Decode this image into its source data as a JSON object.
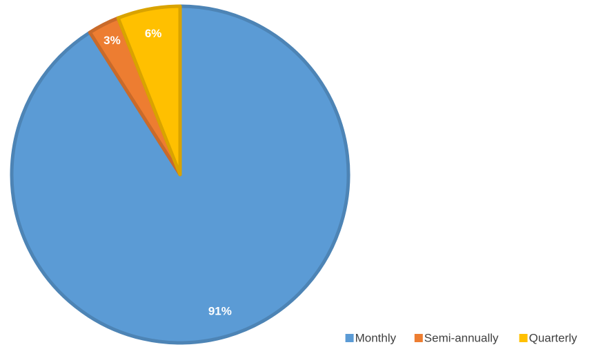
{
  "chart_data": {
    "type": "pie",
    "categories": [
      "Monthly",
      "Semi-annually",
      "Quarterly"
    ],
    "values": [
      91,
      3,
      6
    ],
    "value_labels": [
      "91%",
      "3%",
      "6%"
    ],
    "colors": [
      "#5b9bd5",
      "#ed7d31",
      "#ffc000"
    ],
    "legend": "bottom-right"
  }
}
